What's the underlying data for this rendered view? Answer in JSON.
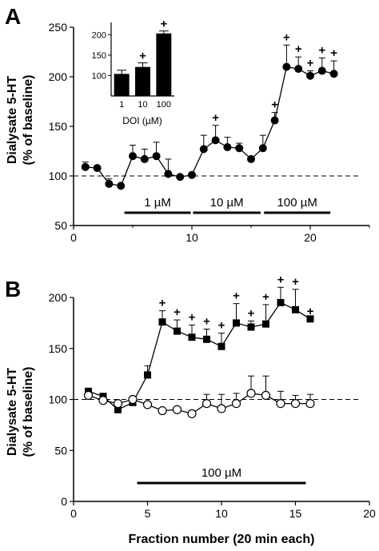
{
  "chart_data": [
    {
      "type": "line",
      "panel": "A",
      "ylabel_line1": "Dialysate 5-HT",
      "ylabel_line2": "(% of baseline)",
      "xlabel": "",
      "xlim": [
        0,
        25
      ],
      "ylim": [
        50,
        250
      ],
      "xticks": [
        0,
        10,
        20
      ],
      "yticks": [
        50,
        100,
        150,
        200,
        250
      ],
      "baseline": 100,
      "grid": false,
      "series": [
        {
          "marker": "filled-circle",
          "x": [
            1,
            2,
            3,
            4,
            5,
            6,
            7,
            8,
            9,
            10,
            11,
            12,
            13,
            14,
            15,
            16,
            17,
            18,
            19,
            20,
            21,
            22
          ],
          "y": [
            109,
            108,
            92,
            90,
            120,
            117,
            120,
            102,
            99,
            101,
            127,
            136,
            129,
            128,
            117,
            128,
            156,
            210,
            208,
            201,
            206,
            203
          ],
          "err": [
            5,
            0,
            5,
            0,
            11,
            10,
            14,
            15,
            0,
            0,
            14,
            15,
            10,
            5,
            0,
            13,
            8,
            22,
            12,
            5,
            13,
            13
          ],
          "significant": [
            false,
            false,
            false,
            false,
            false,
            false,
            false,
            false,
            false,
            false,
            false,
            true,
            false,
            false,
            false,
            false,
            true,
            true,
            true,
            true,
            true,
            true
          ]
        }
      ],
      "treatments": [
        {
          "label": "1 µM",
          "x_start": 4.3,
          "x_end": 9.9
        },
        {
          "label": "10 µM",
          "x_start": 10.1,
          "x_end": 15.8
        },
        {
          "label": "100 µM",
          "x_start": 16.1,
          "x_end": 21.7
        }
      ],
      "inset": {
        "type": "bar",
        "categories": [
          "1",
          "10",
          "100"
        ],
        "values": [
          104,
          121,
          203
        ],
        "err": [
          9,
          10,
          6
        ],
        "significant": [
          false,
          true,
          true
        ],
        "xlabel": "DOI (µM)",
        "ylim": [
          50,
          230
        ],
        "yticks": [
          100,
          150,
          200
        ]
      },
      "sig_marker": "+"
    },
    {
      "type": "line",
      "panel": "B",
      "ylabel_line1": "Dialysate 5-HT",
      "ylabel_line2": "(% of baseline)",
      "xlabel": "Fraction number (20 min each)",
      "xlim": [
        0,
        20
      ],
      "ylim": [
        0,
        200
      ],
      "xticks": [
        0,
        5,
        10,
        15,
        20
      ],
      "yticks": [
        0,
        50,
        100,
        150,
        200
      ],
      "baseline": 100,
      "grid": false,
      "series": [
        {
          "marker": "filled-square",
          "x": [
            1,
            2,
            3,
            4,
            5,
            6,
            7,
            8,
            9,
            10,
            11,
            12,
            13,
            14,
            15,
            16
          ],
          "y": [
            108,
            103,
            90,
            97,
            124,
            176,
            167,
            161,
            159,
            152,
            175,
            171,
            174,
            195,
            188,
            179
          ],
          "err": [
            0,
            0,
            0,
            0,
            9,
            11,
            11,
            12,
            10,
            13,
            19,
            6,
            19,
            15,
            20,
            0
          ],
          "significant": [
            false,
            false,
            false,
            false,
            false,
            true,
            true,
            true,
            true,
            true,
            true,
            true,
            true,
            true,
            true,
            true
          ]
        },
        {
          "marker": "open-circle",
          "x": [
            1,
            2,
            3,
            4,
            5,
            6,
            7,
            8,
            9,
            10,
            11,
            12,
            13,
            14,
            15,
            16
          ],
          "y": [
            104,
            99,
            96,
            100,
            95,
            89,
            90,
            86,
            96,
            91,
            96,
            106,
            104,
            96,
            96,
            96
          ],
          "err": [
            0,
            0,
            0,
            0,
            0,
            0,
            0,
            0,
            9,
            14,
            10,
            17,
            19,
            12,
            8,
            9
          ],
          "significant": [
            false,
            false,
            false,
            false,
            false,
            false,
            false,
            false,
            false,
            false,
            false,
            false,
            false,
            false,
            false,
            false
          ]
        }
      ],
      "treatments": [
        {
          "label": "100 µM",
          "x_start": 4.3,
          "x_end": 15.7
        }
      ],
      "sig_marker": "+"
    }
  ]
}
